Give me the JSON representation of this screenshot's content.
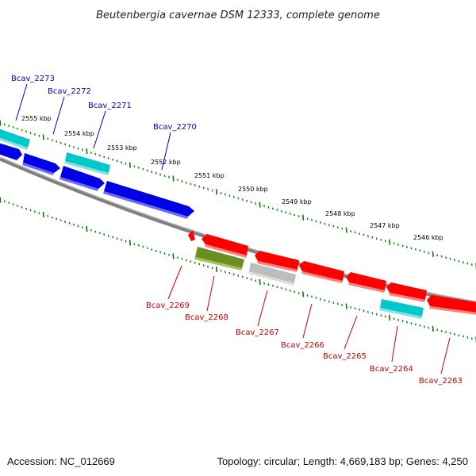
{
  "title": "Beutenbergia cavernae DSM 12333, complete genome",
  "footer": {
    "accession": "Accession: NC_012669",
    "summary": "Topology: circular; Length: 4,669,183 bp; Genes: 4,250"
  },
  "scale_labels": [
    "2555 kbp",
    "2554 kbp",
    "2553 kbp",
    "2552 kbp",
    "2551 kbp",
    "2550 kbp",
    "2549 kbp",
    "2548 kbp",
    "2547 kbp",
    "2546 kbp"
  ],
  "genes": [
    {
      "id": "Bcav_2273",
      "strand": "forward",
      "color": "#00c8c8"
    },
    {
      "id": "Bcav_2272",
      "strand": "forward",
      "color": "#0000e6"
    },
    {
      "id": "Bcav_2271",
      "strand": "forward",
      "color": "#00c8c8"
    },
    {
      "id": "Bcav_2270",
      "strand": "forward",
      "color": "#0000e6"
    },
    {
      "id": "Bcav_2269",
      "strand": "reverse",
      "color": "#ff0000"
    },
    {
      "id": "Bcav_2268",
      "strand": "reverse",
      "color": "#6b8e23"
    },
    {
      "id": "Bcav_2267",
      "strand": "reverse",
      "color": "#bdbdbd"
    },
    {
      "id": "Bcav_2266",
      "strand": "reverse",
      "color": "#ff0000"
    },
    {
      "id": "Bcav_2265",
      "strand": "reverse",
      "color": "#ff0000"
    },
    {
      "id": "Bcav_2264",
      "strand": "reverse",
      "color": "#00c8c8"
    },
    {
      "id": "Bcav_2263",
      "strand": "reverse",
      "color": "#ff0000"
    }
  ],
  "colors": {
    "forward_label": "#0000cc",
    "reverse_label": "#cc0000",
    "backbone": "#808080",
    "ticks": "#008000"
  }
}
